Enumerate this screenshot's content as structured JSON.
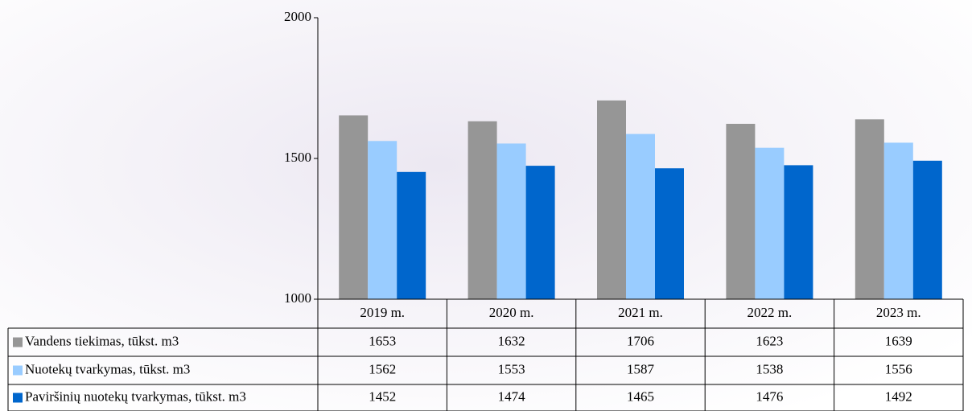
{
  "chart_data": {
    "type": "bar",
    "categories": [
      "2019 m.",
      "2020 m.",
      "2021 m.",
      "2022 m.",
      "2023 m."
    ],
    "series": [
      {
        "name": "Vandens tiekimas, tūkst. m3",
        "color": "#969696",
        "values": [
          1653,
          1632,
          1706,
          1623,
          1639
        ]
      },
      {
        "name": "Nuotekų tvarkymas, tūkst. m3",
        "color": "#99ccff",
        "values": [
          1562,
          1553,
          1587,
          1538,
          1556
        ]
      },
      {
        "name": "Paviršinių nuotekų tvarkymas, tūkst. m3",
        "color": "#0066cc",
        "values": [
          1452,
          1474,
          1465,
          1476,
          1492
        ]
      }
    ],
    "ylim": [
      1000,
      2000
    ],
    "yticks": [
      1000,
      1500,
      2000
    ]
  }
}
